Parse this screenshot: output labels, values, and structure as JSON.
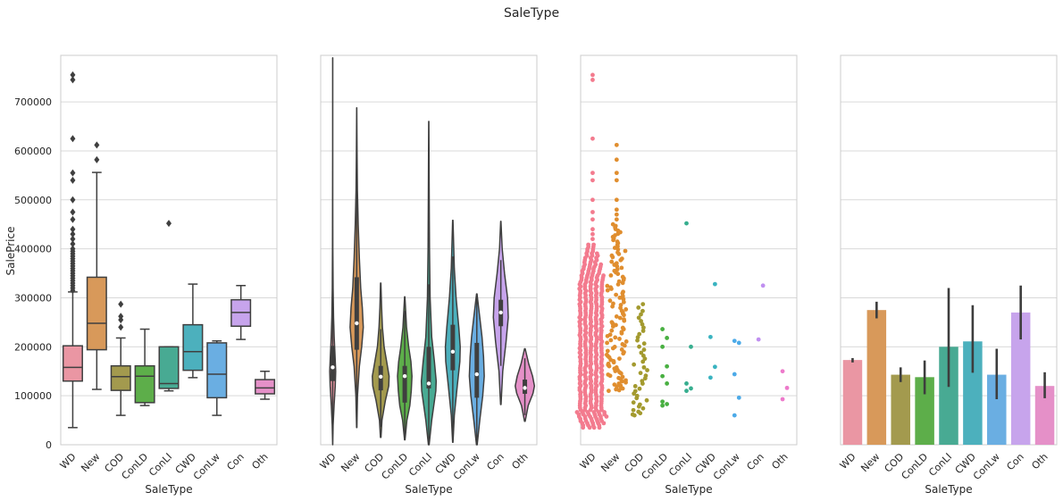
{
  "suptitle": "SaleType",
  "palette": [
    "#ea96a3",
    "#d8995a",
    "#a39a4e",
    "#5dae4a",
    "#48aa93",
    "#4cb0bd",
    "#6aaee2",
    "#c7a4ec",
    "#e590c8"
  ],
  "swarm_palette": [
    "#f37b8e",
    "#e08e2f",
    "#a39a2f",
    "#49b042",
    "#37ae8f",
    "#39b3c0",
    "#4caae8",
    "#c08ff0",
    "#ed7acb"
  ],
  "chart_data": [
    {
      "type": "box",
      "categories": [
        "WD",
        "New",
        "COD",
        "ConLD",
        "ConLI",
        "CWD",
        "ConLw",
        "Con",
        "Oth"
      ],
      "xlabel": "SaleType",
      "ylabel": "SalePrice",
      "ylim": [
        0,
        795000
      ],
      "yticks": [
        0,
        100000,
        200000,
        300000,
        400000,
        500000,
        600000,
        700000
      ],
      "grid": "horizontal",
      "boxes": [
        {
          "q1": 130000,
          "median": 158000,
          "q3": 202000,
          "whislo": 35000,
          "whishi": 312000,
          "fliers": [
            315000,
            320000,
            325000,
            330000,
            335000,
            340000,
            345000,
            350000,
            355000,
            360000,
            365000,
            370000,
            375000,
            380000,
            385000,
            390000,
            395000,
            400000,
            410000,
            420000,
            430000,
            440000,
            460000,
            475000,
            500000,
            540000,
            555000,
            625000,
            745000,
            755000
          ]
        },
        {
          "q1": 194000,
          "median": 248000,
          "q3": 342000,
          "whislo": 113000,
          "whishi": 556000,
          "fliers": [
            582000,
            612000
          ]
        },
        {
          "q1": 111000,
          "median": 139000,
          "q3": 161000,
          "whislo": 60000,
          "whishi": 218000,
          "fliers": [
            240000,
            255000,
            262000,
            287000
          ]
        },
        {
          "q1": 86000,
          "median": 140000,
          "q3": 161000,
          "whislo": 80000,
          "whishi": 236000,
          "fliers": []
        },
        {
          "q1": 115000,
          "median": 125000,
          "q3": 200000,
          "whislo": 110000,
          "whishi": 200000,
          "fliers": [
            452000
          ]
        },
        {
          "q1": 152000,
          "median": 190000,
          "q3": 245000,
          "whislo": 137000,
          "whishi": 328000,
          "fliers": []
        },
        {
          "q1": 96000,
          "median": 144000,
          "q3": 208000,
          "whislo": 60000,
          "whishi": 212000,
          "fliers": []
        },
        {
          "q1": 242000,
          "median": 270000,
          "q3": 296000,
          "whislo": 215000,
          "whishi": 325000,
          "fliers": []
        },
        {
          "q1": 104000,
          "median": 116000,
          "q3": 133000,
          "whislo": 93000,
          "whishi": 150000,
          "fliers": []
        }
      ]
    },
    {
      "type": "violin",
      "categories": [
        "WD",
        "New",
        "COD",
        "ConLD",
        "ConLI",
        "CWD",
        "ConLw",
        "Con",
        "Oth"
      ],
      "xlabel": "SaleType",
      "ylim": [
        0,
        795000
      ],
      "grid": "horizontal",
      "violins": [
        {
          "min": 0,
          "max": 790000,
          "q1": 130000,
          "median": 158000,
          "q3": 202000,
          "width": 0.25,
          "profile": [
            [
              0,
              0.02
            ],
            [
              40000,
              0.15
            ],
            [
              80000,
              0.45
            ],
            [
              120000,
              0.85
            ],
            [
              150000,
              1.0
            ],
            [
              180000,
              0.8
            ],
            [
              220000,
              0.5
            ],
            [
              260000,
              0.28
            ],
            [
              320000,
              0.14
            ],
            [
              400000,
              0.06
            ],
            [
              500000,
              0.03
            ],
            [
              600000,
              0.02
            ],
            [
              790000,
              0.01
            ]
          ]
        },
        {
          "min": 35000,
          "max": 688000,
          "q1": 194000,
          "median": 248000,
          "q3": 342000,
          "width": 0.55,
          "profile": [
            [
              35000,
              0.02
            ],
            [
              100000,
              0.12
            ],
            [
              160000,
              0.4
            ],
            [
              200000,
              0.75
            ],
            [
              240000,
              1.0
            ],
            [
              280000,
              0.85
            ],
            [
              320000,
              0.6
            ],
            [
              380000,
              0.4
            ],
            [
              450000,
              0.22
            ],
            [
              520000,
              0.1
            ],
            [
              600000,
              0.05
            ],
            [
              688000,
              0.01
            ]
          ]
        },
        {
          "min": 15000,
          "max": 330000,
          "q1": 111000,
          "median": 139000,
          "q3": 161000,
          "width": 0.7,
          "profile": [
            [
              15000,
              0.03
            ],
            [
              50000,
              0.15
            ],
            [
              90000,
              0.55
            ],
            [
              120000,
              0.95
            ],
            [
              140000,
              1.0
            ],
            [
              165000,
              0.75
            ],
            [
              200000,
              0.4
            ],
            [
              240000,
              0.2
            ],
            [
              280000,
              0.1
            ],
            [
              330000,
              0.02
            ]
          ]
        },
        {
          "min": 10000,
          "max": 302000,
          "q1": 86000,
          "median": 140000,
          "q3": 161000,
          "width": 0.6,
          "profile": [
            [
              10000,
              0.03
            ],
            [
              50000,
              0.3
            ],
            [
              80000,
              0.7
            ],
            [
              110000,
              0.9
            ],
            [
              140000,
              1.0
            ],
            [
              170000,
              0.85
            ],
            [
              200000,
              0.55
            ],
            [
              240000,
              0.25
            ],
            [
              302000,
              0.02
            ]
          ]
        },
        {
          "min": 0,
          "max": 660000,
          "q1": 115000,
          "median": 125000,
          "q3": 200000,
          "width": 0.62,
          "profile": [
            [
              0,
              0.05
            ],
            [
              50000,
              0.4
            ],
            [
              110000,
              0.95
            ],
            [
              130000,
              1.0
            ],
            [
              170000,
              0.75
            ],
            [
              220000,
              0.4
            ],
            [
              300000,
              0.18
            ],
            [
              400000,
              0.1
            ],
            [
              500000,
              0.06
            ],
            [
              660000,
              0.01
            ]
          ]
        },
        {
          "min": 5000,
          "max": 458000,
          "q1": 152000,
          "median": 190000,
          "q3": 245000,
          "width": 0.62,
          "profile": [
            [
              5000,
              0.02
            ],
            [
              60000,
              0.2
            ],
            [
              120000,
              0.6
            ],
            [
              170000,
              0.95
            ],
            [
              200000,
              1.0
            ],
            [
              240000,
              0.8
            ],
            [
              300000,
              0.45
            ],
            [
              360000,
              0.2
            ],
            [
              458000,
              0.02
            ]
          ]
        },
        {
          "min": 0,
          "max": 308000,
          "q1": 96000,
          "median": 144000,
          "q3": 208000,
          "width": 0.62,
          "profile": [
            [
              0,
              0.05
            ],
            [
              50000,
              0.4
            ],
            [
              100000,
              0.8
            ],
            [
              140000,
              1.0
            ],
            [
              180000,
              0.9
            ],
            [
              220000,
              0.7
            ],
            [
              260000,
              0.4
            ],
            [
              308000,
              0.03
            ]
          ]
        },
        {
          "min": 82000,
          "max": 456000,
          "q1": 242000,
          "median": 270000,
          "q3": 296000,
          "width": 0.62,
          "profile": [
            [
              82000,
              0.03
            ],
            [
              150000,
              0.25
            ],
            [
              210000,
              0.7
            ],
            [
              260000,
              1.0
            ],
            [
              300000,
              0.9
            ],
            [
              350000,
              0.5
            ],
            [
              400000,
              0.18
            ],
            [
              456000,
              0.02
            ]
          ]
        },
        {
          "min": 48000,
          "max": 196000,
          "q1": 104000,
          "median": 116000,
          "q3": 133000,
          "width": 0.8,
          "profile": [
            [
              48000,
              0.03
            ],
            [
              80000,
              0.35
            ],
            [
              105000,
              0.85
            ],
            [
              120000,
              1.0
            ],
            [
              140000,
              0.8
            ],
            [
              165000,
              0.4
            ],
            [
              196000,
              0.03
            ]
          ]
        }
      ]
    },
    {
      "type": "swarm",
      "categories": [
        "WD",
        "New",
        "COD",
        "ConLD",
        "ConLI",
        "CWD",
        "ConLw",
        "Con",
        "Oth"
      ],
      "xlabel": "SaleType",
      "ylim": [
        0,
        795000
      ],
      "grid": "horizontal",
      "groups": [
        {
          "dense_range": [
            35000,
            410000
          ],
          "count": 1267,
          "points": [
            420000,
            430000,
            440000,
            460000,
            475000,
            500000,
            540000,
            555000,
            625000,
            745000,
            755000
          ]
        },
        {
          "dense_range": [
            110000,
            450000
          ],
          "count": 122,
          "points": [
            460000,
            470000,
            480000,
            500000,
            540000,
            555000,
            582000,
            612000
          ]
        },
        {
          "dense_range": [
            60000,
            287000
          ],
          "count": 43,
          "points": []
        },
        {
          "dense_range": null,
          "count": 9,
          "points": [
            80000,
            83000,
            88000,
            125000,
            140000,
            160000,
            200000,
            218000,
            236000
          ]
        },
        {
          "dense_range": null,
          "count": 5,
          "points": [
            110000,
            115000,
            125000,
            200000,
            452000
          ]
        },
        {
          "dense_range": null,
          "count": 4,
          "points": [
            137000,
            159000,
            220000,
            328000
          ]
        },
        {
          "dense_range": null,
          "count": 5,
          "points": [
            60000,
            96000,
            144000,
            208000,
            212000
          ]
        },
        {
          "dense_range": null,
          "count": 2,
          "points": [
            215000,
            325000
          ]
        },
        {
          "dense_range": null,
          "count": 3,
          "points": [
            93000,
            116000,
            150000
          ]
        }
      ]
    },
    {
      "type": "bar",
      "categories": [
        "WD",
        "New",
        "COD",
        "ConLD",
        "ConLI",
        "CWD",
        "ConLw",
        "Con",
        "Oth"
      ],
      "xlabel": "SaleType",
      "ylim": [
        0,
        795000
      ],
      "grid": "horizontal",
      "values": [
        173000,
        275000,
        143000,
        138000,
        200000,
        211000,
        143000,
        270000,
        120000
      ],
      "ci": [
        [
          168000,
          177000
        ],
        [
          258000,
          292000
        ],
        [
          128000,
          158000
        ],
        [
          103000,
          172000
        ],
        [
          118000,
          320000
        ],
        [
          147000,
          285000
        ],
        [
          93000,
          196000
        ],
        [
          215000,
          325000
        ],
        [
          95000,
          148000
        ]
      ]
    }
  ]
}
